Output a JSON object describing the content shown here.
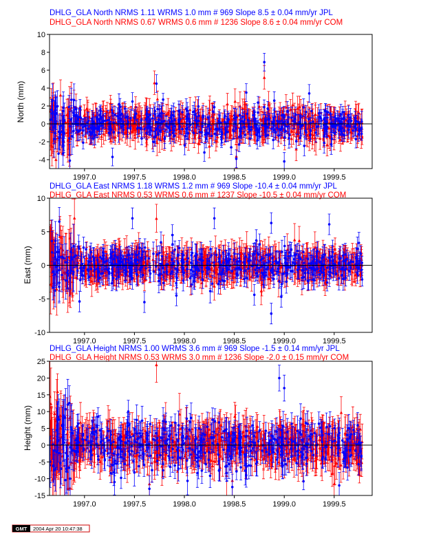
{
  "chart_data": [
    {
      "type": "scatter",
      "ylabel": "North (mm)",
      "xlim": [
        1996.65,
        1999.88
      ],
      "ylim": [
        -5,
        10
      ],
      "yticks": [
        -4,
        -2,
        0,
        2,
        4,
        6,
        8,
        10
      ],
      "xticks": [
        1997.0,
        1997.5,
        1998.0,
        1998.5,
        1999.0,
        1999.5
      ],
      "xtick_labels": [
        "1997.0",
        "1997.5",
        "1998.0",
        "1998.5",
        "1999.0",
        "1999.5"
      ],
      "zero_line": true,
      "headers": [
        {
          "text": "DHLG_GLA North NRMS 1.11 WRMS  1.0 mm # 969 Slope    8.5 ±  0.04 mm/yr JPL",
          "color": "#0000ff"
        },
        {
          "text": "DHLG_GLA North NRMS 0.67 WRMS  0.6 mm # 1236 Slope    8.6 ±  0.04 mm/yr COM",
          "color": "#ff0000"
        }
      ],
      "series": [
        {
          "name": "JPL",
          "color": "#0000ff",
          "marker": "circle",
          "count": 969,
          "x_range": [
            1996.65,
            1999.78
          ],
          "nrms": 1.11,
          "wrms_mm": 1.0,
          "slope": 8.5,
          "slope_sigma": 0.04,
          "scatter_sd": 0.9,
          "error_bar": 0.9,
          "outliers": [
            [
              1997.72,
              4.5
            ],
            [
              1998.8,
              6.9
            ],
            [
              1998.9,
              2.6
            ],
            [
              1997.48,
              2.5
            ],
            [
              1998.2,
              -3.2
            ],
            [
              1998.52,
              -3.9
            ],
            [
              1999.0,
              -4.2
            ],
            [
              1997.28,
              -3.7
            ],
            [
              1998.62,
              3.5
            ],
            [
              1999.25,
              3.4
            ]
          ]
        },
        {
          "name": "COM",
          "color": "#ff0000",
          "marker": "triangle",
          "count": 1236,
          "x_range": [
            1996.65,
            1999.78
          ],
          "nrms": 0.67,
          "wrms_mm": 0.6,
          "slope": 8.6,
          "slope_sigma": 0.04,
          "scatter_sd": 0.8,
          "error_bar": 1.2,
          "outliers": [
            [
              1998.8,
              5.2
            ],
            [
              1997.7,
              4.6
            ],
            [
              1996.85,
              -3.4
            ],
            [
              1998.52,
              -3.6
            ],
            [
              1999.12,
              -2.8
            ],
            [
              1998.25,
              1.3
            ]
          ]
        }
      ]
    },
    {
      "type": "scatter",
      "ylabel": "East (mm)",
      "xlim": [
        1996.65,
        1999.88
      ],
      "ylim": [
        -10,
        10
      ],
      "yticks": [
        -10,
        -5,
        0,
        5,
        10
      ],
      "xticks": [
        1997.0,
        1997.5,
        1998.0,
        1998.5,
        1999.0,
        1999.5
      ],
      "xtick_labels": [
        "1997.0",
        "1997.5",
        "1998.0",
        "1998.5",
        "1999.0",
        "1999.5"
      ],
      "zero_line": true,
      "headers": [
        {
          "text": "DHLG_GLA East NRMS 1.18 WRMS  1.2 mm # 969 Slope  -10.4 ±  0.04 mm/yr JPL",
          "color": "#0000ff"
        },
        {
          "text": "DHLG_GLA East NRMS 0.53 WRMS  0.6 mm # 1237 Slope  -10.5 ±  0.04 mm/yr COM",
          "color": "#ff0000"
        }
      ],
      "series": [
        {
          "name": "JPL",
          "color": "#0000ff",
          "marker": "circle",
          "count": 969,
          "x_range": [
            1996.65,
            1999.78
          ],
          "nrms": 1.18,
          "wrms_mm": 1.2,
          "slope": -10.4,
          "slope_sigma": 0.04,
          "scatter_sd": 1.3,
          "error_bar": 1.4,
          "outliers": [
            [
              1997.48,
              7.0
            ],
            [
              1998.3,
              7.0
            ],
            [
              1998.87,
              -7.2
            ],
            [
              1998.87,
              6.3
            ],
            [
              1999.45,
              6.1
            ],
            [
              1997.6,
              -5.5
            ],
            [
              1996.95,
              -5.4
            ],
            [
              1998.97,
              -4.7
            ],
            [
              1998.7,
              -4.4
            ],
            [
              1997.92,
              -4.5
            ],
            [
              1997.88,
              4.5
            ]
          ]
        },
        {
          "name": "COM",
          "color": "#ff0000",
          "marker": "triangle",
          "count": 1237,
          "x_range": [
            1996.65,
            1999.78
          ],
          "nrms": 0.53,
          "wrms_mm": 0.6,
          "slope": -10.5,
          "slope_sigma": 0.04,
          "scatter_sd": 1.0,
          "error_bar": 1.9,
          "outliers": [
            [
              1997.72,
              7.0
            ],
            [
              1998.77,
              -3.8
            ],
            [
              1998.3,
              -3.1
            ],
            [
              1996.85,
              -3.5
            ],
            [
              1999.15,
              3.7
            ]
          ]
        }
      ]
    },
    {
      "type": "scatter",
      "ylabel": "Height (mm)",
      "xlim": [
        1996.65,
        1999.88
      ],
      "ylim": [
        -15,
        25
      ],
      "yticks": [
        -15,
        -10,
        -5,
        0,
        5,
        10,
        15,
        20,
        25
      ],
      "xticks": [
        1997.0,
        1997.5,
        1998.0,
        1998.5,
        1999.0,
        1999.5
      ],
      "xtick_labels": [
        "1997.0",
        "1997.5",
        "1998.0",
        "1998.5",
        "1999.0",
        "1999.5"
      ],
      "zero_line": true,
      "headers": [
        {
          "text": "DHLG_GLA Height NRMS 1.00 WRMS  3.6 mm # 969 Slope   -1.5 ±  0.14 mm/yr JPL",
          "color": "#0000ff"
        },
        {
          "text": "DHLG_GLA Height NRMS 0.53 WRMS  3.0 mm # 1236 Slope   -2.0 ±  0.15 mm/yr COM",
          "color": "#ff0000"
        }
      ],
      "series": [
        {
          "name": "JPL",
          "color": "#0000ff",
          "marker": "circle",
          "count": 969,
          "x_range": [
            1996.65,
            1999.78
          ],
          "nrms": 1.0,
          "wrms_mm": 3.6,
          "slope": -1.5,
          "slope_sigma": 0.14,
          "scatter_sd": 3.5,
          "error_bar": 3.5,
          "outliers": [
            [
              1998.95,
              20.0
            ],
            [
              1997.65,
              -13.0
            ],
            [
              1998.48,
              -12.5
            ],
            [
              1999.55,
              -12.0
            ],
            [
              1997.3,
              -11.0
            ],
            [
              1999.0,
              17.0
            ]
          ]
        },
        {
          "name": "COM",
          "color": "#ff0000",
          "marker": "triangle",
          "count": 1236,
          "x_range": [
            1996.65,
            1999.78
          ],
          "nrms": 0.53,
          "wrms_mm": 3.0,
          "slope": -2.0,
          "slope_sigma": 0.15,
          "scatter_sd": 3.0,
          "error_bar": 4.8,
          "outliers": [
            [
              1997.72,
              24.0
            ],
            [
              1996.73,
              16.0
            ],
            [
              1997.65,
              -11.5
            ],
            [
              1998.48,
              -10.5
            ],
            [
              1999.5,
              -11.5
            ]
          ]
        }
      ]
    }
  ],
  "footer": {
    "logo": "GMT",
    "timestamp": "2004 Apr 20 10:47:38"
  }
}
